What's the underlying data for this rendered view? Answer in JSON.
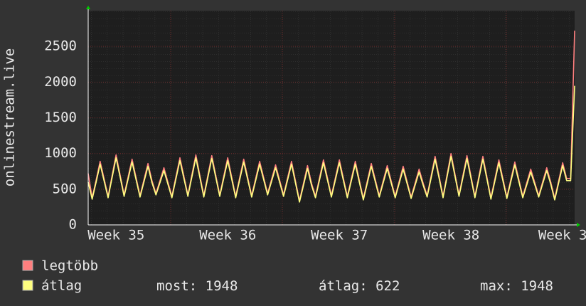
{
  "chart_data": {
    "type": "line",
    "y_label": "onlinestream.live",
    "categories": [
      null,
      null,
      null,
      null,
      null,
      null,
      null,
      "Week 35",
      null,
      null,
      null,
      null,
      null,
      null,
      null,
      null,
      null,
      null,
      null,
      null,
      null,
      null,
      null,
      null,
      null,
      null,
      null,
      null,
      null,
      null,
      null,
      null,
      null,
      null,
      null,
      "Week 36",
      null,
      null,
      null,
      null,
      null,
      null,
      null,
      null,
      null,
      null,
      null,
      null,
      null,
      null,
      null,
      null,
      null,
      null,
      null,
      null,
      null,
      null,
      null,
      null,
      null,
      null,
      null,
      "Week 37",
      null,
      null,
      null,
      null,
      null,
      null,
      null,
      null,
      null,
      null,
      null,
      null,
      null,
      null,
      null,
      null,
      null,
      null,
      null,
      null,
      null,
      null,
      null,
      null,
      null,
      null,
      null,
      "Week 38",
      null,
      null,
      null,
      null,
      null,
      null,
      null,
      null,
      null,
      null,
      null,
      null,
      null,
      null,
      null,
      null,
      null,
      null,
      null,
      null,
      null,
      null,
      null,
      null,
      null,
      null,
      null,
      "Week 3",
      null,
      null,
      null
    ],
    "series": [
      {
        "name": "legtöbb",
        "color": "#ff7f7f",
        "values": [
          720,
          380,
          630,
          890,
          645,
          400,
          690,
          980,
          700,
          420,
          670,
          920,
          665,
          410,
          635,
          860,
          620,
          440,
          620,
          800,
          600,
          400,
          670,
          940,
          680,
          420,
          700,
          980,
          695,
          410,
          690,
          970,
          695,
          420,
          680,
          940,
          670,
          400,
          660,
          920,
          665,
          410,
          650,
          890,
          665,
          440,
          640,
          840,
          630,
          420,
          655,
          890,
          615,
          340,
          585,
          830,
          585,
          400,
          655,
          910,
          660,
          410,
          660,
          910,
          655,
          400,
          645,
          890,
          630,
          370,
          615,
          860,
          635,
          410,
          620,
          830,
          615,
          400,
          610,
          820,
          605,
          390,
          585,
          780,
          585,
          410,
          685,
          960,
          685,
          400,
          700,
          1000,
          710,
          420,
          695,
          970,
          685,
          400,
          680,
          960,
          670,
          380,
          645,
          910,
          650,
          390,
          635,
          880,
          640,
          400,
          590,
          780,
          595,
          410,
          605,
          800,
          600,
          370,
          620,
          870,
          650,
          650,
          2720
        ]
      },
      {
        "name": "átlag",
        "color": "#ffff80",
        "values": [
          600,
          360,
          600,
          850,
          615,
          380,
          660,
          940,
          670,
          400,
          640,
          880,
          635,
          390,
          605,
          820,
          590,
          420,
          590,
          760,
          570,
          380,
          640,
          900,
          650,
          400,
          670,
          940,
          665,
          390,
          660,
          930,
          665,
          400,
          650,
          900,
          640,
          380,
          630,
          880,
          635,
          390,
          620,
          850,
          635,
          420,
          610,
          800,
          600,
          400,
          625,
          850,
          585,
          320,
          555,
          790,
          555,
          380,
          625,
          870,
          630,
          390,
          630,
          870,
          625,
          380,
          615,
          850,
          600,
          350,
          585,
          820,
          605,
          390,
          590,
          790,
          585,
          380,
          580,
          780,
          575,
          370,
          555,
          740,
          555,
          390,
          655,
          920,
          655,
          380,
          670,
          960,
          680,
          400,
          665,
          930,
          655,
          380,
          650,
          920,
          640,
          360,
          615,
          870,
          620,
          370,
          605,
          840,
          610,
          380,
          560,
          740,
          565,
          390,
          575,
          760,
          570,
          350,
          590,
          830,
          620,
          620,
          1948
        ]
      }
    ],
    "stats": [
      {
        "label": "most:",
        "value": 1948
      },
      {
        "label": "átlag:",
        "value": 622
      },
      {
        "label": "max:",
        "value": 1948
      }
    ],
    "ylim": [
      0,
      3000
    ],
    "yticks": [
      0,
      500,
      1000,
      1500,
      2000,
      2500
    ],
    "grid": true
  }
}
